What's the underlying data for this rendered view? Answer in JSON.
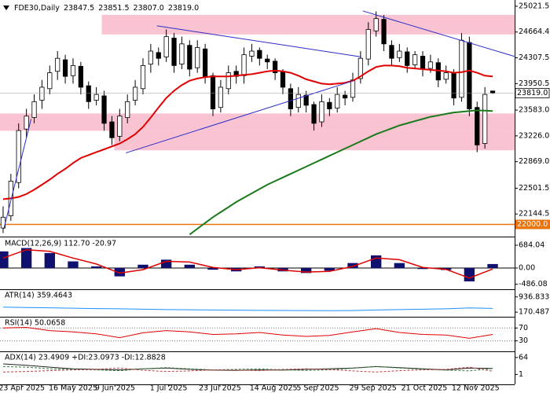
{
  "chart_data": [
    {
      "type": "candlestick",
      "title": "FDE30,Daily",
      "last": {
        "values": [
          23847.5,
          23851.5,
          23807,
          23819
        ],
        "value_labels": [
          "23847.5",
          "23851.5",
          "23807.0",
          "23819.0"
        ]
      },
      "xlim": [
        -0.4,
        63.3
      ],
      "ylim": [
        21864,
        25086
      ],
      "yticks": [
        25021.5,
        24664.4,
        24307.5,
        23950.5,
        {
          "value": 23583,
          "label": "23583.0"
        },
        {
          "value": 23226,
          "label": "23226.0"
        },
        {
          "value": 22869,
          "label": "22869.0"
        },
        22501.5,
        22144.5
      ],
      "x": [
        0,
        1,
        2,
        3,
        4,
        5,
        6,
        7,
        8,
        9,
        10,
        11,
        12,
        13,
        14,
        15,
        16,
        17,
        18,
        19,
        20,
        21,
        22,
        23,
        24,
        25,
        26,
        27,
        28,
        29,
        30,
        31,
        32,
        33,
        34,
        35,
        36,
        37,
        38,
        39,
        40,
        41,
        42,
        43,
        44,
        45,
        46,
        47,
        48,
        49,
        50,
        51,
        52,
        53,
        54,
        55,
        56,
        57,
        58,
        59,
        60,
        61,
        62,
        63
      ],
      "open": [
        21950,
        22120,
        22580,
        23320,
        23480,
        23720,
        23880,
        24120,
        24280,
        24060,
        24190,
        23920,
        23720,
        23780,
        23420,
        23220,
        23480,
        23720,
        23880,
        24220,
        24380,
        24320,
        24580,
        24220,
        24480,
        24170,
        24430,
        24060,
        23620,
        23880,
        24120,
        24060,
        24330,
        24410,
        24290,
        24260,
        24110,
        23880,
        23620,
        23790,
        23660,
        23420,
        23690,
        23610,
        23790,
        23760,
        24020,
        24290,
        24680,
        24840,
        24480,
        24310,
        24390,
        24210,
        24330,
        24160,
        24240,
        24010,
        24090,
        23760,
        24520,
        23620,
        23120,
        23847.5
      ],
      "high": [
        22250,
        22700,
        23400,
        23600,
        23800,
        24000,
        24200,
        24400,
        24350,
        24300,
        24250,
        23980,
        23900,
        23850,
        23500,
        23600,
        23800,
        24000,
        24300,
        24500,
        24450,
        24700,
        24650,
        24600,
        24550,
        24550,
        24500,
        24100,
        24000,
        24200,
        24200,
        24450,
        24500,
        24450,
        24350,
        24300,
        24150,
        23950,
        23900,
        23850,
        23700,
        23800,
        23750,
        23900,
        23850,
        24100,
        24400,
        24800,
        24950,
        24900,
        24550,
        24500,
        24450,
        24400,
        24400,
        24350,
        24300,
        24200,
        24150,
        24650,
        24600,
        23700,
        23900,
        23851.5
      ],
      "low": [
        21880,
        22050,
        22500,
        23200,
        23400,
        23600,
        23800,
        24000,
        23950,
        23950,
        23800,
        23600,
        23650,
        23300,
        23100,
        23150,
        23400,
        23650,
        23800,
        24100,
        24200,
        24250,
        24100,
        24150,
        24050,
        24100,
        23950,
        23500,
        23550,
        23800,
        23950,
        23950,
        24250,
        24200,
        24150,
        24000,
        23800,
        23500,
        23550,
        23550,
        23300,
        23350,
        23500,
        23550,
        23650,
        23700,
        23950,
        24200,
        24600,
        24400,
        24200,
        24250,
        24100,
        24150,
        24050,
        24100,
        23900,
        23950,
        23650,
        23700,
        23500,
        23000,
        23050,
        23807
      ],
      "close": [
        22100,
        22600,
        23300,
        23500,
        23700,
        23900,
        24100,
        24300,
        24050,
        24200,
        23900,
        23700,
        23800,
        23400,
        23200,
        23500,
        23700,
        23900,
        24200,
        24400,
        24300,
        24600,
        24200,
        24500,
        24150,
        24450,
        24050,
        23600,
        23900,
        24100,
        24050,
        24350,
        24400,
        24300,
        24250,
        24100,
        23900,
        23600,
        23800,
        23650,
        23400,
        23700,
        23600,
        23800,
        23750,
        24000,
        24300,
        24700,
        24850,
        24500,
        24300,
        24400,
        24200,
        24350,
        24150,
        24250,
        24000,
        24100,
        23750,
        24550,
        23600,
        23100,
        23800,
        23819
      ],
      "candle_color": "#000000",
      "overlays": [
        {
          "color": "#e00000",
          "values": [
            22350,
            22360,
            22380,
            22420,
            22480,
            22550,
            22620,
            22700,
            22770,
            22850,
            22920,
            22960,
            23000,
            23040,
            23080,
            23120,
            23180,
            23250,
            23350,
            23480,
            23620,
            23750,
            23850,
            23930,
            23990,
            24020,
            24040,
            24050,
            24050,
            24050,
            24060,
            24070,
            24080,
            24100,
            24120,
            24130,
            24120,
            24100,
            24060,
            24010,
            23980,
            23950,
            23940,
            23950,
            23960,
            23990,
            24050,
            24120,
            24180,
            24200,
            24200,
            24190,
            24170,
            24160,
            24150,
            24140,
            24130,
            24120,
            24100,
            24110,
            24130,
            24100,
            24060,
            24050
          ]
        },
        {
          "color": "#1a7a1a",
          "values": [
            null,
            null,
            null,
            null,
            null,
            null,
            null,
            null,
            null,
            null,
            null,
            null,
            null,
            null,
            null,
            null,
            null,
            null,
            null,
            null,
            null,
            null,
            null,
            null,
            21860,
            21940,
            22020,
            22100,
            22170,
            22240,
            22310,
            22370,
            22430,
            22490,
            22550,
            22600,
            22650,
            22700,
            22750,
            22800,
            22850,
            22900,
            22950,
            23000,
            23050,
            23100,
            23150,
            23200,
            23250,
            23290,
            23330,
            23370,
            23400,
            23430,
            23460,
            23490,
            23510,
            23530,
            23550,
            23560,
            23570,
            23580,
            23575,
            23570
          ]
        }
      ],
      "zones": [
        {
          "x0": 12.7,
          "y0": 24631,
          "y1": 24902
        },
        {
          "x0": -0.4,
          "y0": 23297,
          "y1": 23536
        },
        {
          "x0": 14.3,
          "y0": 23026,
          "y1": 23297
        }
      ],
      "zone_color": "#f9c3d2",
      "trendlines": [
        {
          "x": [
            19.8,
            46.1
          ],
          "y": [
            24750,
            24320
          ]
        },
        {
          "x": [
            15.8,
            45.1
          ],
          "y": [
            22990,
            23990
          ]
        },
        {
          "x": [
            0.1,
            3.6
          ],
          "y": [
            21940,
            23460
          ]
        },
        {
          "x": [
            46.3,
            65.8
          ],
          "y": [
            24956,
            24327
          ]
        }
      ],
      "trendline_color": "#2b2bc8",
      "hline": {
        "value": 22000,
        "label": "22000.0",
        "color": "#e8730c"
      }
    },
    {
      "type": "macd",
      "title": "MACD(12,26,9) 112.70 -20.97",
      "xlim": [
        -0.4,
        63.3
      ],
      "ylim": [
        -613,
        873
      ],
      "yticks": [
        684.04,
        {
          "value": 0,
          "label": "0.00"
        },
        -486.08
      ],
      "x": [
        0,
        3,
        6,
        9,
        12,
        15,
        18,
        21,
        24,
        27,
        30,
        33,
        36,
        39,
        42,
        45,
        48,
        51,
        54,
        57,
        60,
        63
      ],
      "histogram": [
        500,
        600,
        450,
        200,
        50,
        -250,
        100,
        250,
        100,
        -50,
        -100,
        50,
        -100,
        -150,
        -80,
        150,
        380,
        150,
        -30,
        -60,
        -400,
        120
      ],
      "signal": [
        300,
        550,
        500,
        300,
        120,
        -150,
        -50,
        200,
        180,
        20,
        -50,
        10,
        -60,
        -120,
        -100,
        50,
        300,
        250,
        20,
        -40,
        -300,
        -30
      ],
      "bar_color": "#10106e",
      "signal_color": "#e00000"
    },
    {
      "type": "line",
      "title": "ATR(14) 359.4643",
      "xlim": [
        -0.4,
        63.3
      ],
      "ylim": [
        -21,
        1243
      ],
      "yticks": [
        936.8339,
        170.4875
      ],
      "grid": false,
      "x": [
        0,
        3,
        6,
        9,
        12,
        15,
        18,
        21,
        24,
        27,
        30,
        33,
        36,
        39,
        42,
        45,
        48,
        51,
        54,
        57,
        60,
        63
      ],
      "series": [
        {
          "color": "#1e90ff",
          "dashed": false,
          "values": [
            420,
            400,
            390,
            370,
            350,
            340,
            320,
            300,
            290,
            280,
            270,
            260,
            255,
            250,
            245,
            250,
            280,
            300,
            320,
            340,
            380,
            359
          ]
        }
      ]
    },
    {
      "type": "line",
      "title": "RSI(14) 50.0658",
      "xlim": [
        -0.4,
        63.3
      ],
      "ylim": [
        0,
        100
      ],
      "yticks": [
        70,
        30
      ],
      "grid": true,
      "x": [
        0,
        3,
        6,
        9,
        12,
        15,
        18,
        21,
        24,
        27,
        30,
        33,
        36,
        39,
        42,
        45,
        48,
        51,
        54,
        57,
        60,
        63
      ],
      "series": [
        {
          "color": "#e00000",
          "dashed": false,
          "values": [
            70,
            72,
            62,
            58,
            52,
            40,
            55,
            62,
            58,
            50,
            52,
            56,
            48,
            44,
            47,
            58,
            68,
            56,
            50,
            48,
            38,
            50
          ]
        }
      ]
    },
    {
      "type": "line",
      "title": "ADX(14) 23.4909 +DI:23.0973 -DI:12.8828",
      "xlim": [
        -0.4,
        63.3
      ],
      "ylim": [
        -33,
        81
      ],
      "yticks": [
        64,
        1
      ],
      "grid": false,
      "x": [
        0,
        3,
        6,
        9,
        12,
        15,
        18,
        21,
        24,
        27,
        30,
        33,
        36,
        39,
        42,
        45,
        48,
        51,
        54,
        57,
        60,
        63
      ],
      "series": [
        {
          "color": "#222222",
          "dashed": false,
          "values": [
            40,
            35,
            28,
            22,
            20,
            18,
            22,
            25,
            20,
            17,
            16,
            18,
            17,
            20,
            22,
            25,
            30,
            26,
            22,
            18,
            25,
            23
          ]
        },
        {
          "color": "#3a7a3a",
          "dashed": true,
          "values": [
            30,
            28,
            22,
            20,
            18,
            15,
            22,
            26,
            22,
            18,
            20,
            22,
            18,
            16,
            18,
            24,
            30,
            25,
            20,
            17,
            14,
            23
          ]
        },
        {
          "color": "#c04040",
          "dashed": true,
          "values": [
            10,
            12,
            15,
            18,
            20,
            25,
            16,
            12,
            14,
            18,
            17,
            15,
            20,
            22,
            19,
            14,
            10,
            15,
            18,
            20,
            28,
            13
          ]
        }
      ],
      "xticks": [
        {
          "value": 2.4,
          "label": "23 Apr 2025"
        },
        {
          "value": 9,
          "label": "16 May 2025"
        },
        {
          "value": 14.4,
          "label": "9 Jun 2025"
        },
        {
          "value": 21.3,
          "label": "1 Jul 2025"
        },
        {
          "value": 27.9,
          "label": "23 Jul 2025"
        },
        {
          "value": 34.8,
          "label": "14 Aug 2025"
        },
        {
          "value": 40.5,
          "label": "5 Sep 2025"
        },
        {
          "value": 47.6,
          "label": "29 Sep 2025"
        },
        {
          "value": 54.2,
          "label": "21 Oct 2025"
        },
        {
          "value": 60.8,
          "label": "12 Nov 2025"
        }
      ]
    }
  ]
}
